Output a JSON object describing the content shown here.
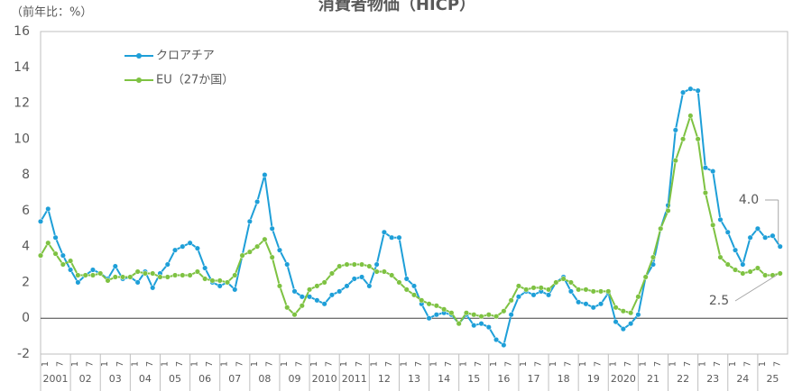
{
  "chart_data": {
    "type": "line",
    "title": "消費者物価（HICP）",
    "y_axis_label": "（前年比：%）",
    "ylim": [
      -2,
      16
    ],
    "yticks": [
      -2,
      0,
      2,
      4,
      6,
      8,
      10,
      12,
      14,
      16
    ],
    "xlim": [
      2001,
      2026
    ],
    "xticks": [
      {
        "value": 2001.5,
        "label": "2001"
      },
      {
        "value": 2002.5,
        "label": "02"
      },
      {
        "value": 2003.5,
        "label": "03"
      },
      {
        "value": 2004.5,
        "label": "04"
      },
      {
        "value": 2005.5,
        "label": "05"
      },
      {
        "value": 2006.5,
        "label": "06"
      },
      {
        "value": 2007.5,
        "label": "07"
      },
      {
        "value": 2008.5,
        "label": "08"
      },
      {
        "value": 2009.5,
        "label": "09"
      },
      {
        "value": 2010.5,
        "label": "2010"
      },
      {
        "value": 2011.5,
        "label": "2011"
      },
      {
        "value": 2012.5,
        "label": "12"
      },
      {
        "value": 2013.5,
        "label": "13"
      },
      {
        "value": 2014.5,
        "label": "14"
      },
      {
        "value": 2015.5,
        "label": "15"
      },
      {
        "value": 2016.5,
        "label": "16"
      },
      {
        "value": 2017.5,
        "label": "17"
      },
      {
        "value": 2018.5,
        "label": "18"
      },
      {
        "value": 2019.5,
        "label": "19"
      },
      {
        "value": 2020.5,
        "label": "2020"
      },
      {
        "value": 2021.5,
        "label": "21"
      },
      {
        "value": 2022.5,
        "label": "22"
      },
      {
        "value": 2023.5,
        "label": "23"
      },
      {
        "value": 2024.5,
        "label": "24"
      },
      {
        "value": 2025.5,
        "label": "25"
      }
    ],
    "month_ticks": [
      {
        "value": 0,
        "label": "1"
      },
      {
        "value": 0.5,
        "label": "7"
      }
    ],
    "x": [
      2001,
      2001.25,
      2001.5,
      2001.75,
      2002,
      2002.25,
      2002.5,
      2002.75,
      2003,
      2003.25,
      2003.5,
      2003.75,
      2004,
      2004.25,
      2004.5,
      2004.75,
      2005,
      2005.25,
      2005.5,
      2005.75,
      2006,
      2006.25,
      2006.5,
      2006.75,
      2007,
      2007.25,
      2007.5,
      2007.75,
      2008,
      2008.25,
      2008.5,
      2008.75,
      2009,
      2009.25,
      2009.5,
      2009.75,
      2010,
      2010.25,
      2010.5,
      2010.75,
      2011,
      2011.25,
      2011.5,
      2011.75,
      2012,
      2012.25,
      2012.5,
      2012.75,
      2013,
      2013.25,
      2013.5,
      2013.75,
      2014,
      2014.25,
      2014.5,
      2014.75,
      2015,
      2015.25,
      2015.5,
      2015.75,
      2016,
      2016.25,
      2016.5,
      2016.75,
      2017,
      2017.25,
      2017.5,
      2017.75,
      2018,
      2018.25,
      2018.5,
      2018.75,
      2019,
      2019.25,
      2019.5,
      2019.75,
      2020,
      2020.25,
      2020.5,
      2020.75,
      2021,
      2021.25,
      2021.5,
      2021.75,
      2022,
      2022.25,
      2022.5,
      2022.75,
      2023,
      2023.25,
      2023.5,
      2023.75,
      2024,
      2024.25,
      2024.5,
      2024.75,
      2025,
      2025.25,
      2025.5,
      2025.75
    ],
    "series": [
      {
        "name": "クロアチア",
        "color": "#1e9fd8",
        "values": [
          5.4,
          6.1,
          4.5,
          3.5,
          2.7,
          2.0,
          2.4,
          2.7,
          2.5,
          2.2,
          2.9,
          2.2,
          2.3,
          2.0,
          2.6,
          1.7,
          2.5,
          3.0,
          3.8,
          4.0,
          4.2,
          3.9,
          2.8,
          2.0,
          1.8,
          2.0,
          1.6,
          3.5,
          5.4,
          6.5,
          8.0,
          5.0,
          3.8,
          3.0,
          1.5,
          1.2,
          1.2,
          1.0,
          0.8,
          1.3,
          1.5,
          1.8,
          2.2,
          2.3,
          1.8,
          3.0,
          4.8,
          4.5,
          4.5,
          2.2,
          1.8,
          0.8,
          0.0,
          0.2,
          0.3,
          0.2,
          -0.3,
          0.2,
          -0.4,
          -0.3,
          -0.5,
          -1.2,
          -1.5,
          0.2,
          1.2,
          1.5,
          1.3,
          1.5,
          1.3,
          2.0,
          2.3,
          1.5,
          0.9,
          0.8,
          0.6,
          0.8,
          1.4,
          -0.2,
          -0.6,
          -0.3,
          0.2,
          2.3,
          3.0,
          5.0,
          6.3,
          10.5,
          12.6,
          12.8,
          12.7,
          8.4,
          8.2,
          5.5,
          4.8,
          3.8,
          3.0,
          4.5,
          5.0,
          4.5,
          4.6,
          4.0
        ]
      },
      {
        "name": "EU（27か国）",
        "color": "#7ec242",
        "values": [
          3.5,
          4.2,
          3.6,
          3.0,
          3.2,
          2.4,
          2.4,
          2.4,
          2.5,
          2.1,
          2.3,
          2.3,
          2.3,
          2.6,
          2.5,
          2.5,
          2.3,
          2.3,
          2.4,
          2.4,
          2.4,
          2.6,
          2.2,
          2.1,
          2.1,
          2.0,
          2.4,
          3.5,
          3.7,
          4.0,
          4.4,
          3.4,
          1.8,
          0.6,
          0.2,
          0.7,
          1.6,
          1.8,
          2.0,
          2.5,
          2.9,
          3.0,
          3.0,
          3.0,
          2.9,
          2.6,
          2.6,
          2.4,
          2.0,
          1.6,
          1.3,
          1.0,
          0.8,
          0.7,
          0.5,
          0.3,
          -0.3,
          0.3,
          0.2,
          0.1,
          0.2,
          0.1,
          0.4,
          1.0,
          1.8,
          1.6,
          1.7,
          1.7,
          1.6,
          2.0,
          2.2,
          2.0,
          1.6,
          1.6,
          1.5,
          1.5,
          1.5,
          0.6,
          0.4,
          0.3,
          1.2,
          2.3,
          3.4,
          5.0,
          6.0,
          8.8,
          10.0,
          11.3,
          10.0,
          7.0,
          5.2,
          3.4,
          3.0,
          2.7,
          2.5,
          2.6,
          2.8,
          2.4,
          2.4,
          2.5
        ]
      }
    ],
    "annotations": [
      {
        "text": "4.0"
      },
      {
        "text": "2.5"
      }
    ],
    "grid": false
  }
}
